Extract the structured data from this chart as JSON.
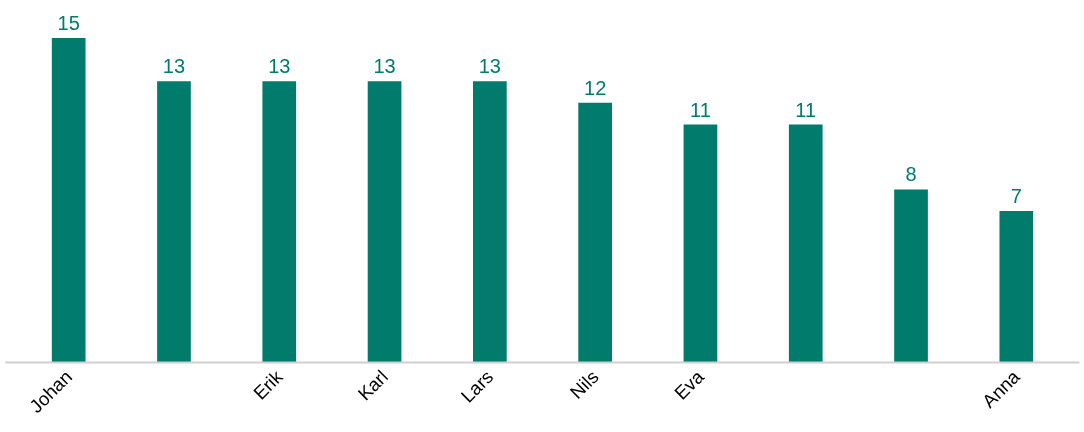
{
  "chart_data": {
    "type": "bar",
    "categories": [
      "Johan",
      null,
      "Erik",
      "Karl",
      "Lars",
      "Nils",
      "Eva",
      null,
      null,
      "Anna"
    ],
    "values": [
      15,
      13,
      13,
      13,
      13,
      12,
      11,
      11,
      8,
      7
    ],
    "color": "#007b6c",
    "data_labels": true
  }
}
